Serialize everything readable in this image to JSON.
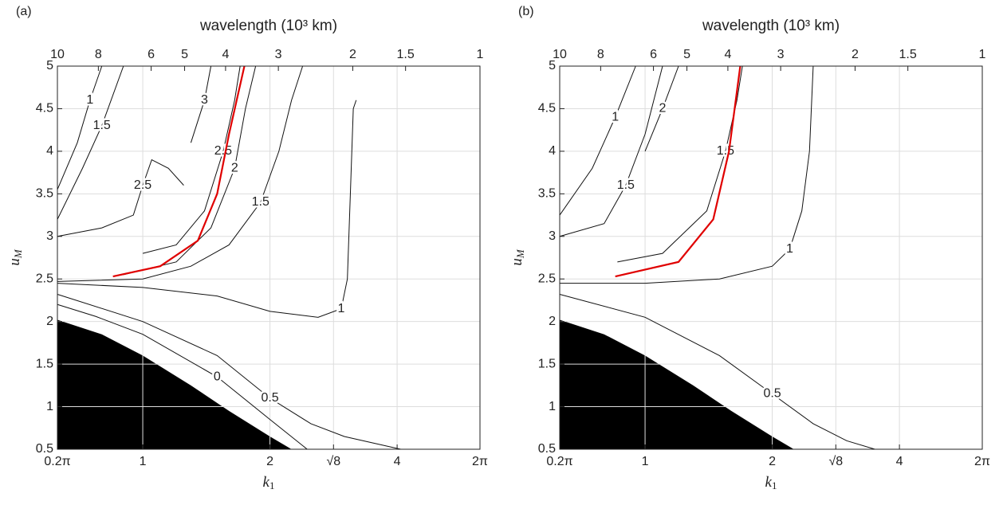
{
  "chart_data": [
    {
      "type": "contour",
      "title": "(a)",
      "top_axis_label": "wavelength (10³ km)",
      "xlabel": {
        "main": "k",
        "sub": "1"
      },
      "ylabel": {
        "main": "u",
        "sub": "M"
      },
      "xscale": "log",
      "xlim": [
        0.628,
        6.283
      ],
      "ylim": [
        0.5,
        5
      ],
      "grid": true,
      "xticks": [
        {
          "value": 0.628,
          "label": "0.2π"
        },
        1,
        2,
        {
          "value": 2.828,
          "label": "√8"
        },
        4,
        {
          "value": 6.283,
          "label": "2π"
        }
      ],
      "yticks": [
        0.5,
        1,
        1.5,
        2,
        2.5,
        3,
        3.5,
        4,
        4.5,
        5
      ],
      "x2lim": [
        10,
        1
      ],
      "x2ticks": [
        10,
        8,
        6,
        5,
        4,
        3,
        2,
        1.5,
        1
      ],
      "filled_region": {
        "color": "#000000",
        "x": [
          0.628,
          0.8,
          1,
          1.3,
          1.6,
          2,
          2.25
        ],
        "y": [
          2.02,
          1.85,
          1.6,
          1.25,
          0.95,
          0.65,
          0.5
        ]
      },
      "contours": [
        {
          "level": 0,
          "x": [
            0.628,
            0.774,
            1,
            1.5,
            2,
            2.45
          ],
          "y": [
            2.2,
            2.06,
            1.85,
            1.35,
            0.85,
            0.5
          ]
        },
        {
          "level": 0.5,
          "x": [
            0.628,
            1,
            1.5,
            2,
            2.5,
            3,
            4.08
          ],
          "y": [
            2.32,
            2.0,
            1.6,
            1.1,
            0.8,
            0.65,
            0.5
          ]
        },
        {
          "level": 1,
          "x": [
            0.628,
            1,
            1.5,
            2,
            2.6,
            2.95,
            3.05,
            3.1,
            3.15,
            3.2
          ],
          "y": [
            2.45,
            2.4,
            2.3,
            2.12,
            2.05,
            2.15,
            2.5,
            3.5,
            4.5,
            4.6
          ]
        },
        {
          "level": 1,
          "x": [
            0.628,
            0.7,
            0.75,
            0.8
          ],
          "y": [
            3.55,
            4.1,
            4.6,
            5
          ]
        },
        {
          "level": 1.5,
          "x": [
            0.628,
            1,
            1.3,
            1.6,
            1.9,
            2.1,
            2.25,
            2.39
          ],
          "y": [
            2.47,
            2.5,
            2.65,
            2.9,
            3.4,
            4,
            4.6,
            5
          ]
        },
        {
          "level": 1.5,
          "x": [
            0.628,
            0.72,
            0.8,
            0.9
          ],
          "y": [
            3.2,
            3.8,
            4.3,
            5
          ]
        },
        {
          "level": 2,
          "x": [
            0.9,
            1.2,
            1.45,
            1.65,
            1.75,
            1.85
          ],
          "y": [
            2.55,
            2.7,
            3.1,
            3.8,
            4.5,
            5
          ]
        },
        {
          "level": 2.5,
          "x": [
            1.0,
            1.2,
            1.4,
            1.55,
            1.65,
            1.7
          ],
          "y": [
            2.8,
            2.9,
            3.3,
            4,
            4.6,
            5
          ]
        },
        {
          "level": 2.5,
          "x": [
            0.628,
            0.8,
            0.95,
            1.0,
            1.05,
            1.15,
            1.25
          ],
          "y": [
            3.0,
            3.1,
            3.25,
            3.6,
            3.9,
            3.8,
            3.6
          ]
        },
        {
          "level": 3,
          "x": [
            1.3,
            1.4,
            1.45
          ],
          "y": [
            4.1,
            4.6,
            5
          ]
        }
      ],
      "red_curve": {
        "color": "#e00000",
        "x": [
          0.85,
          1.1,
          1.35,
          1.5,
          1.6,
          1.74
        ],
        "y": [
          2.53,
          2.65,
          2.95,
          3.5,
          4.2,
          5
        ]
      }
    },
    {
      "type": "contour",
      "title": "(b)",
      "top_axis_label": "wavelength (10³ km)",
      "xlabel": {
        "main": "k",
        "sub": "1"
      },
      "ylabel": {
        "main": "u",
        "sub": "M"
      },
      "xscale": "log",
      "xlim": [
        0.628,
        6.283
      ],
      "ylim": [
        0.5,
        5
      ],
      "grid": true,
      "xticks": [
        {
          "value": 0.628,
          "label": "0.2π"
        },
        1,
        2,
        {
          "value": 2.828,
          "label": "√8"
        },
        4,
        {
          "value": 6.283,
          "label": "2π"
        }
      ],
      "yticks": [
        0.5,
        1,
        1.5,
        2,
        2.5,
        3,
        3.5,
        4,
        4.5,
        5
      ],
      "x2lim": [
        10,
        1
      ],
      "x2ticks": [
        10,
        8,
        6,
        5,
        4,
        3,
        2,
        1.5,
        1
      ],
      "filled_region": {
        "color": "#000000",
        "x": [
          0.628,
          0.8,
          1,
          1.3,
          1.6,
          2,
          2.25
        ],
        "y": [
          2.02,
          1.85,
          1.6,
          1.25,
          0.95,
          0.65,
          0.5
        ]
      },
      "contours": [
        {
          "level": 0.5,
          "x": [
            0.628,
            1,
            1.5,
            2,
            2.5,
            3,
            3.5
          ],
          "y": [
            2.32,
            2.05,
            1.6,
            1.15,
            0.8,
            0.6,
            0.5
          ]
        },
        {
          "level": 1,
          "x": [
            0.628,
            1,
            1.5,
            2,
            2.2,
            2.35,
            2.45,
            2.5
          ],
          "y": [
            2.45,
            2.45,
            2.5,
            2.65,
            2.85,
            3.3,
            4,
            5
          ]
        },
        {
          "level": 1,
          "x": [
            0.628,
            0.75,
            0.85,
            0.95
          ],
          "y": [
            3.25,
            3.8,
            4.4,
            5
          ]
        },
        {
          "level": 1.5,
          "x": [
            0.86,
            1.1,
            1.4,
            1.55,
            1.65,
            1.7
          ],
          "y": [
            2.7,
            2.8,
            3.3,
            4,
            4.6,
            5
          ]
        },
        {
          "level": 1.5,
          "x": [
            0.628,
            0.8,
            0.9,
            1.0,
            1.1
          ],
          "y": [
            3.0,
            3.15,
            3.6,
            4.2,
            5
          ]
        },
        {
          "level": 2,
          "x": [
            1.0,
            1.1,
            1.2
          ],
          "y": [
            4.0,
            4.5,
            5
          ]
        }
      ],
      "red_curve": {
        "color": "#e00000",
        "x": [
          0.85,
          1.2,
          1.45,
          1.58,
          1.68
        ],
        "y": [
          2.53,
          2.7,
          3.2,
          4,
          5
        ]
      }
    }
  ]
}
